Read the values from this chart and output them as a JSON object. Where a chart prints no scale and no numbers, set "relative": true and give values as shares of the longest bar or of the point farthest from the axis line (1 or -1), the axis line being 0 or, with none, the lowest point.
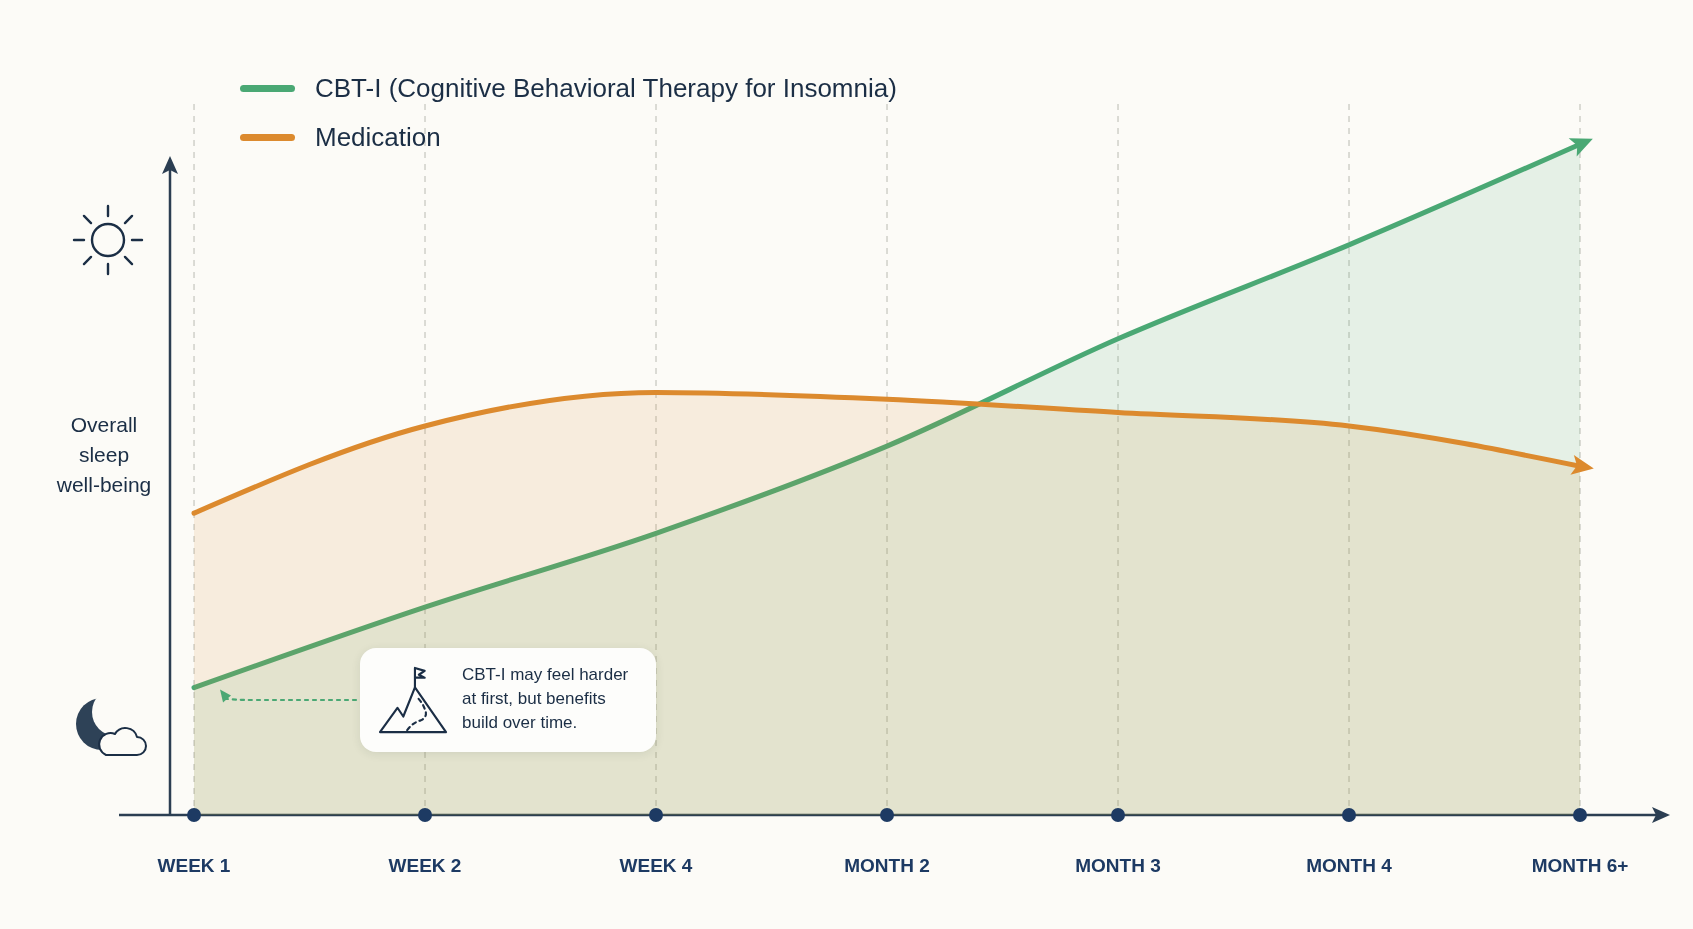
{
  "chart_data": {
    "type": "area",
    "relative": true,
    "ylabel": "Overall sleep well-being",
    "categories": [
      "WEEK 1",
      "WEEK 2",
      "WEEK 4",
      "MONTH 2",
      "MONTH 3",
      "MONTH 4",
      "MONTH 6+"
    ],
    "series": [
      {
        "name": "CBT-I (Cognitive Behavioral Therapy for Insomnia)",
        "color": "#4aa874",
        "values": [
          0.19,
          0.31,
          0.42,
          0.55,
          0.71,
          0.85,
          1
        ]
      },
      {
        "name": "Medication",
        "color": "#dc8a2e",
        "values": [
          0.45,
          0.58,
          0.63,
          0.62,
          0.6,
          0.58,
          0.52
        ]
      }
    ],
    "legend": "top left",
    "grid": "x",
    "annotations": [
      "CBT-I may feel harder at first, but benefits build over time."
    ]
  }
}
